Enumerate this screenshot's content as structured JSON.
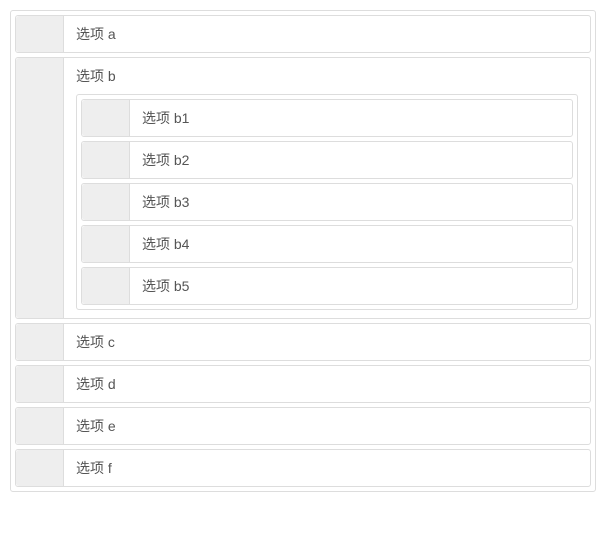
{
  "colors": {
    "border": "#dddddd",
    "handle_bg": "#eeeeee",
    "text": "#555555",
    "background": "#ffffff"
  },
  "items": [
    {
      "label": "选项 a"
    },
    {
      "label": "选项 b",
      "children": [
        {
          "label": "选项 b1"
        },
        {
          "label": "选项 b2"
        },
        {
          "label": "选项 b3"
        },
        {
          "label": "选项 b4"
        },
        {
          "label": "选项 b5"
        }
      ]
    },
    {
      "label": "选项 c"
    },
    {
      "label": "选项 d"
    },
    {
      "label": "选项 e"
    },
    {
      "label": "选项 f"
    }
  ]
}
